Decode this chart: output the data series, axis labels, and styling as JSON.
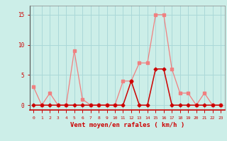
{
  "x": [
    0,
    1,
    2,
    3,
    4,
    5,
    6,
    7,
    8,
    9,
    10,
    11,
    12,
    13,
    14,
    15,
    16,
    17,
    18,
    19,
    20,
    21,
    22,
    23
  ],
  "y_rafales": [
    3,
    0,
    2,
    0,
    0,
    9,
    1,
    0,
    0,
    0,
    0,
    4,
    4,
    7,
    7,
    15,
    15,
    6,
    2,
    2,
    0,
    2,
    0,
    0
  ],
  "y_moyen": [
    0,
    0,
    0,
    0,
    0,
    0,
    0,
    0,
    0,
    0,
    0,
    0,
    4,
    0,
    0,
    6,
    6,
    0,
    0,
    0,
    0,
    0,
    0,
    0
  ],
  "color_rafales": "#f08080",
  "color_moyen": "#cc0000",
  "xlabel": "Vent moyen/en rafales ( km/h )",
  "ylabel_ticks": [
    0,
    5,
    10,
    15
  ],
  "xlim": [
    -0.5,
    23.5
  ],
  "ylim": [
    -0.8,
    16.5
  ],
  "bg_color": "#cceee8",
  "grid_color": "#aad8d8",
  "xlabel_color": "#cc0000",
  "tick_color": "#cc0000"
}
